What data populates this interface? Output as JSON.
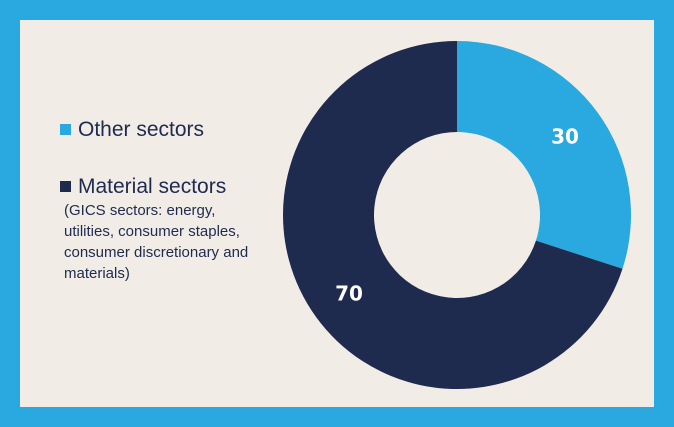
{
  "chart_data": {
    "type": "pie",
    "donut": true,
    "categories": [
      "Other sectors",
      "Material sectors"
    ],
    "values": [
      30,
      70
    ],
    "colors": [
      "#29a9e0",
      "#1f2a4f"
    ],
    "label_colors": [
      "#ffffff",
      "#ffffff"
    ],
    "legend": [
      {
        "label": "Other sectors",
        "note": ""
      },
      {
        "label": "Material sectors",
        "note": "(GICS sectors: energy, utilities, consumer staples, consumer discretionary and materials)"
      }
    ],
    "legend_position": "left"
  },
  "colors": {
    "frame": "#29a9e0",
    "panel": "#f1ede6"
  }
}
